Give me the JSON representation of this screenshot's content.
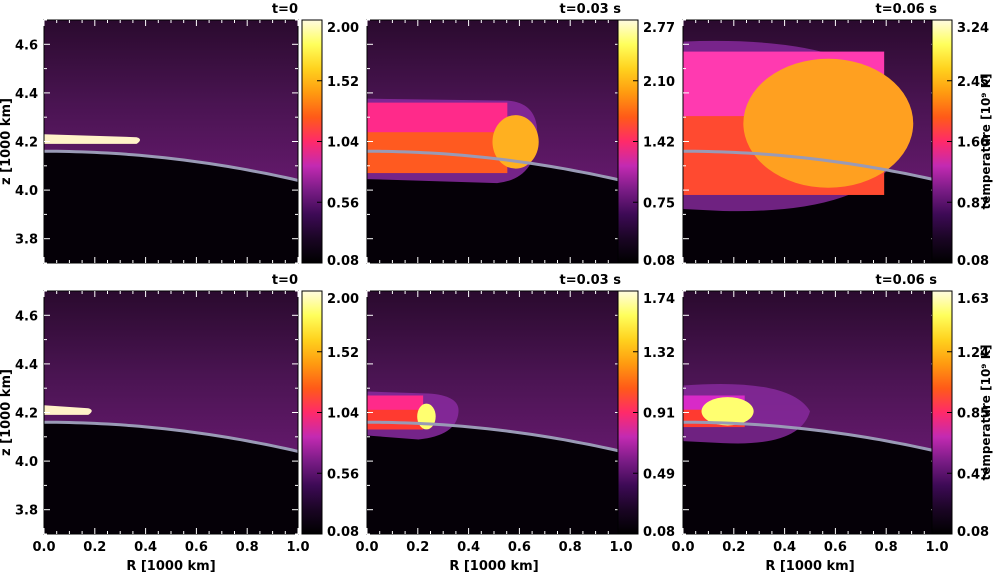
{
  "figure": {
    "colormap_stops": [
      "#000000",
      "#1a0524",
      "#3d0a55",
      "#7a1c86",
      "#c32ab2",
      "#ff2a6a",
      "#ff5a18",
      "#ff9a10",
      "#ffd21e",
      "#ffff5c",
      "#fffbe0"
    ],
    "surface_color": "#9a9ab6"
  },
  "chart_data": [
    {
      "type": "heatmap",
      "title": "t=0",
      "xlabel": "",
      "ylabel": "z [1000 km]",
      "xlim": [
        0,
        1.0
      ],
      "ylim": [
        3.7,
        4.7
      ],
      "x_ticks": [],
      "y_ticks": [
        "3.8",
        "4.0",
        "4.2",
        "4.4",
        "4.6"
      ],
      "colorbar": {
        "ticks": [
          "0.08",
          "0.56",
          "1.04",
          "1.52",
          "2.00"
        ],
        "label": ""
      },
      "feature": {
        "kind": "initial",
        "front_r": 0.38,
        "z_low": 4.19,
        "z_high": 4.23
      }
    },
    {
      "type": "heatmap",
      "title": "t=0.03 s",
      "xlabel": "",
      "ylabel": "",
      "xlim": [
        0,
        1.0
      ],
      "ylim": [
        3.7,
        4.7
      ],
      "x_ticks": [],
      "y_ticks": [],
      "colorbar": {
        "ticks": [
          "0.08",
          "0.75",
          "1.42",
          "2.10",
          "2.77"
        ],
        "label": ""
      },
      "feature": {
        "kind": "cap",
        "front_r": 0.65,
        "z_low": 4.07,
        "z_high": 4.36,
        "shock_r": 0.67,
        "head_color": "#ffb020",
        "body_color": "#ff5a20",
        "top_color": "#ff2a8a"
      }
    },
    {
      "type": "heatmap",
      "title": "t=0.06 s",
      "xlabel": "",
      "ylabel": "",
      "xlim": [
        0,
        1.0
      ],
      "ylim": [
        3.7,
        4.7
      ],
      "x_ticks": [],
      "y_ticks": [],
      "colorbar": {
        "ticks": [
          "0.08",
          "0.87",
          "1.66",
          "2.45",
          "3.24"
        ],
        "label": "temperature [10⁹ K]"
      },
      "feature": {
        "kind": "bubble",
        "front_r": 0.88,
        "z_low": 3.98,
        "z_high": 4.57,
        "shock_r": 0.89,
        "head_color": "#ffa020",
        "body_color": "#ff4a30",
        "top_color": "#ff3ab0"
      }
    },
    {
      "type": "heatmap",
      "title": "t=0",
      "xlabel": "R [1000 km]",
      "ylabel": "z [1000 km]",
      "xlim": [
        0,
        1.0
      ],
      "ylim": [
        3.7,
        4.7
      ],
      "x_ticks": [
        "0.0",
        "0.2",
        "0.4",
        "0.6",
        "0.8",
        "1.0"
      ],
      "y_ticks": [
        "3.8",
        "4.0",
        "4.2",
        "4.4",
        "4.6"
      ],
      "colorbar": {
        "ticks": [
          "0.08",
          "0.56",
          "1.04",
          "1.52",
          "2.00"
        ],
        "label": ""
      },
      "feature": {
        "kind": "initial",
        "front_r": 0.19,
        "z_low": 4.19,
        "z_high": 4.23
      }
    },
    {
      "type": "heatmap",
      "title": "t=0.03 s",
      "xlabel": "R [1000 km]",
      "ylabel": "",
      "xlim": [
        0,
        1.0
      ],
      "ylim": [
        3.7,
        4.7
      ],
      "x_ticks": [
        "0.0",
        "0.2",
        "0.4",
        "0.6",
        "0.8",
        "1.0"
      ],
      "y_ticks": [],
      "colorbar": {
        "ticks": [
          "0.08",
          "0.49",
          "0.91",
          "1.32",
          "1.74"
        ],
        "label": ""
      },
      "feature": {
        "kind": "cap",
        "front_r": 0.26,
        "z_low": 4.13,
        "z_high": 4.27,
        "shock_r": 0.36,
        "head_color": "#ffff70",
        "body_color": "#ff3a30",
        "top_color": "#ff2a8a"
      }
    },
    {
      "type": "heatmap",
      "title": "t=0.06 s",
      "xlabel": "R [1000 km]",
      "ylabel": "",
      "xlim": [
        0,
        1.0
      ],
      "ylim": [
        3.7,
        4.7
      ],
      "x_ticks": [
        "0.0",
        "0.2",
        "0.4",
        "0.6",
        "0.8",
        "1.0"
      ],
      "y_ticks": [],
      "colorbar": {
        "ticks": [
          "0.08",
          "0.47",
          "0.85",
          "1.24",
          "1.63"
        ],
        "label": "temperature [10⁹ K]"
      },
      "feature": {
        "kind": "bubble",
        "front_r": 0.27,
        "z_low": 4.14,
        "z_high": 4.27,
        "shock_r": 0.5,
        "head_color": "#ffff70",
        "body_color": "#ff3a30",
        "top_color": "#d82ac8"
      }
    }
  ]
}
